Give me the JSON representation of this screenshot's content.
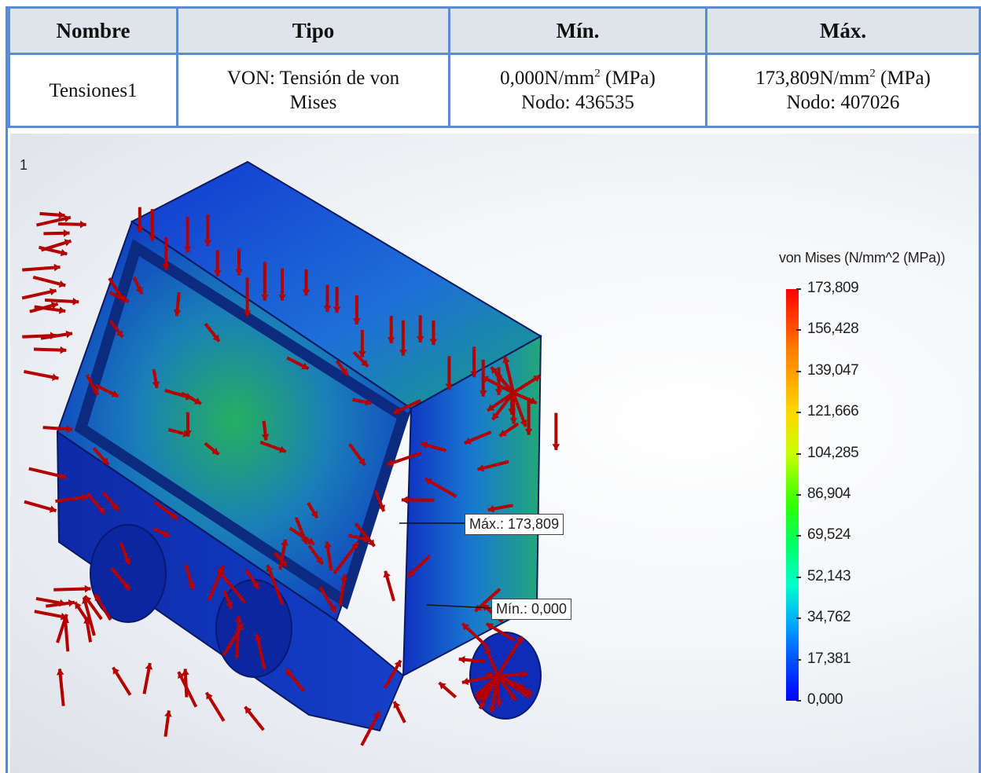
{
  "table": {
    "headers": [
      "Nombre",
      "Tipo",
      "Mín.",
      "Máx."
    ],
    "row": {
      "name": "Tensiones1",
      "type_line1": "VON: Tensión de von",
      "type_line2": "Mises",
      "min_value": "0,000N/mm",
      "min_unit_tail": " (MPa)",
      "min_node": "Nodo: 436535",
      "max_value": "173,809N/mm",
      "max_unit_tail": " (MPa)",
      "max_node": "Nodo: 407026",
      "superscript": "2"
    }
  },
  "plot": {
    "index_label": "1",
    "max_callout": "Máx.: 173,809",
    "min_callout": "Mín.: 0,000"
  },
  "legend": {
    "title": "von Mises (N/mm^2 (MPa))",
    "labels": [
      "173,809",
      "156,428",
      "139,047",
      "121,666",
      "104,285",
      "86,904",
      "69,524",
      "52,143",
      "34,762",
      "17,381",
      "0,000"
    ]
  },
  "colors": {
    "table_border": "#5b8bd4",
    "header_background": "#dfe3ea",
    "arrow_red": "#b30000",
    "model_blue": "#1030c0"
  }
}
